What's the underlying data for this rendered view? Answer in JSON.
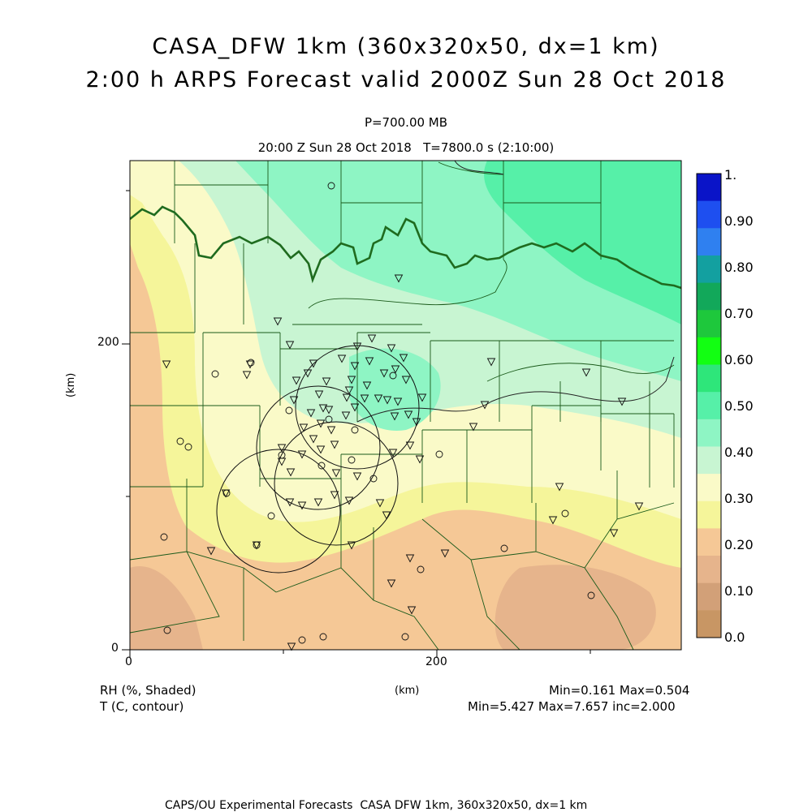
{
  "title": {
    "line1": "CASA_DFW 1km (360x320x50, dx=1 km)",
    "line2": "2:00 h ARPS Forecast valid 2000Z Sun 28 Oct 2018"
  },
  "subtitle": {
    "level": "P=700.00 MB",
    "time": "20:00 Z Sun 28 Oct 2018   T=7800.0 s (2:10:00)"
  },
  "axes": {
    "y_unit": "(km)",
    "x_unit": "(km)",
    "x_ticks": [
      "0",
      "200"
    ],
    "y_ticks": [
      "0",
      "200"
    ]
  },
  "colorbar": {
    "labels": [
      "1.",
      "0.90",
      "0.80",
      "0.70",
      "0.60",
      "0.50",
      "0.40",
      "0.30",
      "0.20",
      "0.10",
      "0.0"
    ],
    "colors": [
      "#0a14c8",
      "#1e4ff0",
      "#2f80f0",
      "#13a0a0",
      "#12a85a",
      "#1ec83c",
      "#12ff12",
      "#2ee67a",
      "#56f0a8",
      "#8ef5c4",
      "#c8f5d2",
      "#fafac8",
      "#f5f59a",
      "#f5c896",
      "#e6b48c",
      "#d2a078",
      "#c89664"
    ]
  },
  "legend": {
    "field1": "RH (%, Shaded)",
    "field2": "T (C, contour)",
    "stats1": "Min=0.161 Max=0.504",
    "stats2": "Min=5.427 Max=7.657 inc=2.000"
  },
  "footer": "CAPS/OU Experimental Forecasts  CASA DFW 1km, 360x320x50, dx=1 km"
}
